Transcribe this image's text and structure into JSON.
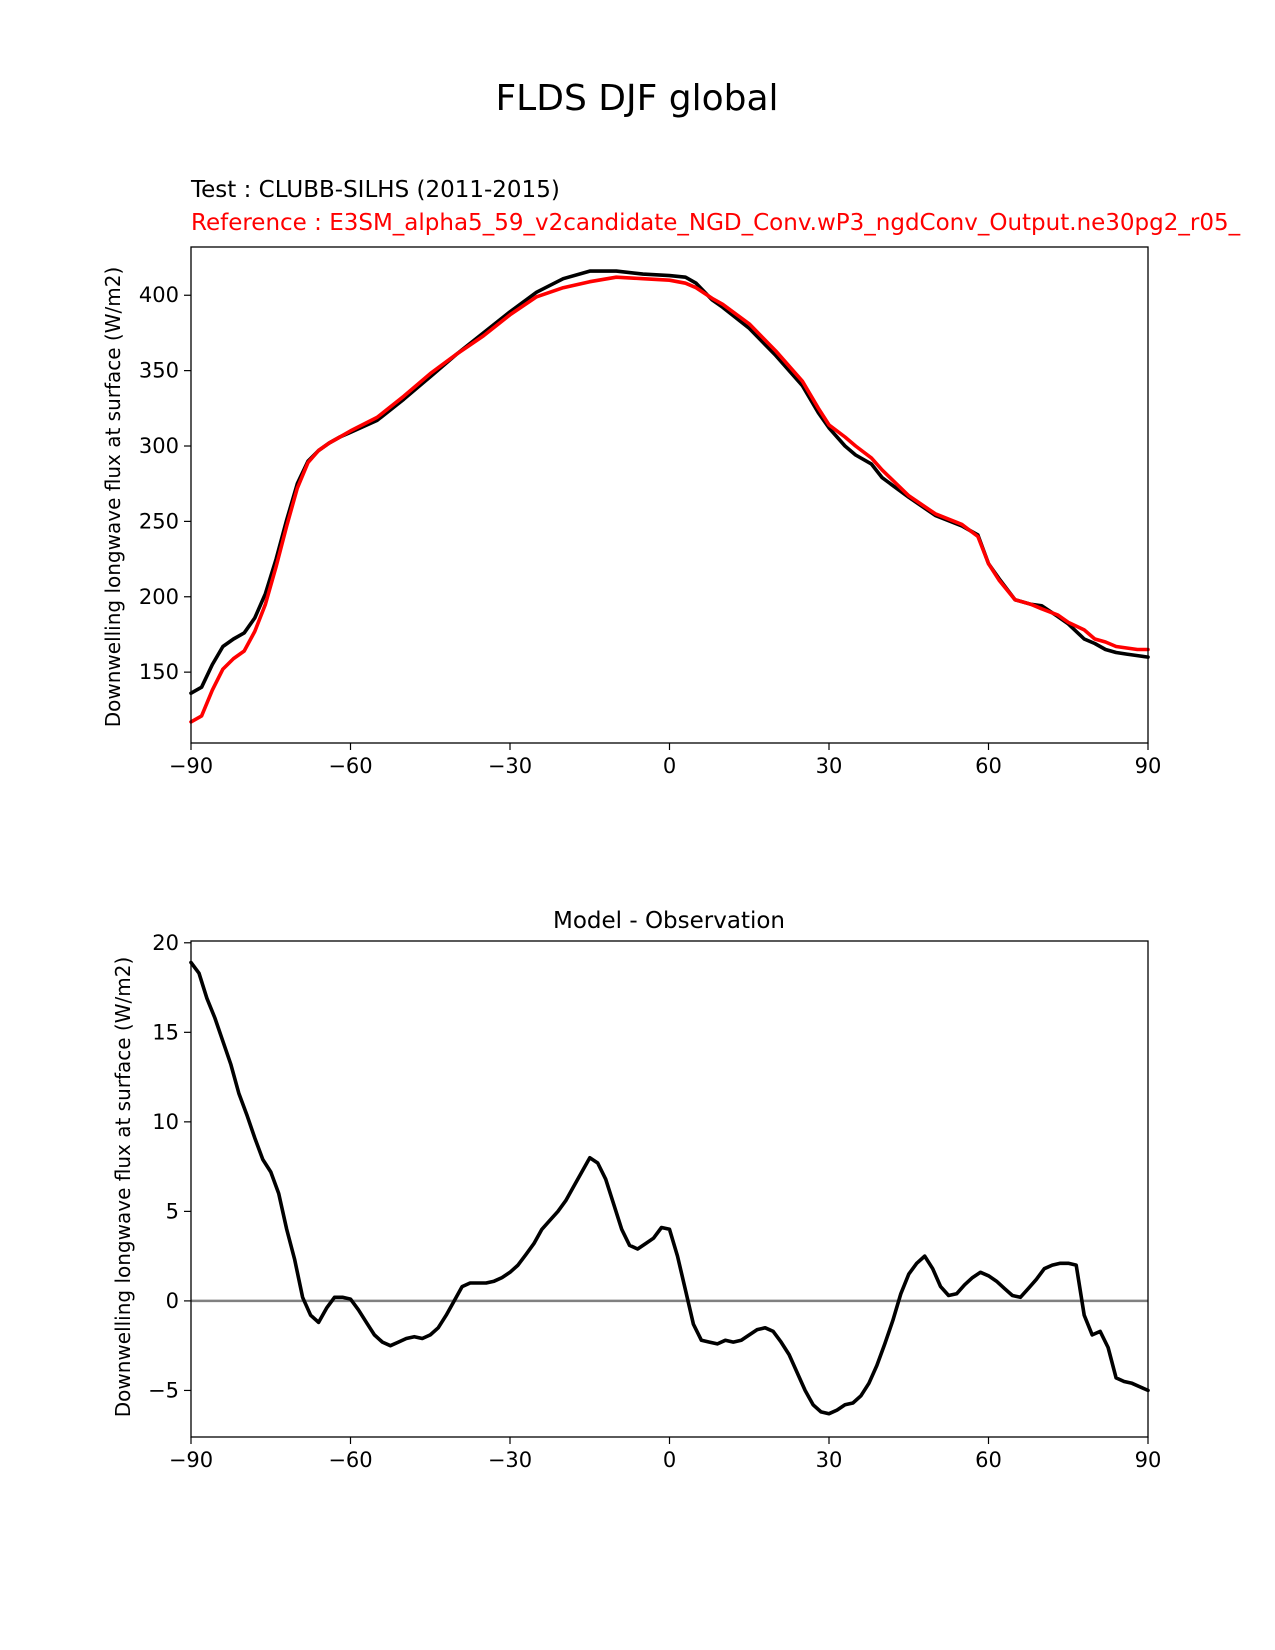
{
  "figure": {
    "suptitle": "FLDS DJF global"
  },
  "chart_data": [
    {
      "type": "line",
      "test_label": "Test : CLUBB-SILHS (2011-2015)",
      "reference_label": "Reference : E3SM_alpha5_59_v2candidate_NGD_Conv.wP3_ngdConv_Output.ne30pg2_r05_",
      "xlabel": "",
      "ylabel": "Downwelling longwave flux at surface (W/m2)",
      "xlim": [
        -90,
        90
      ],
      "ylim": [
        103,
        432
      ],
      "xticks": [
        -90,
        -60,
        -30,
        0,
        30,
        60,
        90
      ],
      "xtick_labels": [
        "−90",
        "−60",
        "−30",
        "0",
        "30",
        "60",
        "90"
      ],
      "yticks": [
        150,
        200,
        250,
        300,
        350,
        400
      ],
      "ytick_labels": [
        "150",
        "200",
        "250",
        "300",
        "350",
        "400"
      ],
      "series": [
        {
          "name": "test",
          "color": "#000000",
          "x": [
            -90,
            -88,
            -86,
            -84,
            -82,
            -80,
            -78,
            -76,
            -74,
            -72,
            -70,
            -68,
            -66,
            -64,
            -62,
            -60,
            -55,
            -50,
            -45,
            -40,
            -35,
            -30,
            -25,
            -20,
            -15,
            -10,
            -5,
            0,
            3,
            5,
            8,
            10,
            15,
            20,
            25,
            28,
            30,
            33,
            35,
            38,
            40,
            45,
            50,
            55,
            58,
            60,
            62,
            65,
            68,
            70,
            73,
            75,
            78,
            80,
            82,
            84,
            86,
            88,
            90
          ],
          "y": [
            136,
            140,
            155,
            167,
            172,
            176,
            186,
            202,
            225,
            251,
            275,
            290,
            297,
            302,
            306,
            309,
            317,
            331,
            346,
            361,
            375,
            389,
            402,
            411,
            416,
            416,
            414,
            413,
            412,
            408,
            397,
            392,
            378,
            360,
            340,
            322,
            312,
            300,
            294,
            288,
            279,
            266,
            254,
            247,
            241,
            222,
            212,
            198,
            195,
            194,
            187,
            182,
            172,
            169,
            165,
            163,
            162,
            161,
            160
          ]
        },
        {
          "name": "reference",
          "color": "#ff0000",
          "x": [
            -90,
            -88,
            -86,
            -84,
            -82,
            -80,
            -78,
            -76,
            -74,
            -72,
            -70,
            -68,
            -66,
            -64,
            -62,
            -60,
            -55,
            -50,
            -45,
            -40,
            -35,
            -30,
            -25,
            -20,
            -15,
            -10,
            -5,
            0,
            3,
            5,
            8,
            10,
            15,
            20,
            25,
            28,
            30,
            33,
            35,
            38,
            40,
            45,
            50,
            55,
            58,
            60,
            62,
            65,
            68,
            70,
            73,
            75,
            78,
            80,
            82,
            84,
            86,
            88,
            90
          ],
          "y": [
            117,
            121,
            138,
            152,
            159,
            164,
            177,
            195,
            220,
            247,
            272,
            289,
            297,
            302,
            306,
            310,
            319,
            333,
            348,
            361,
            373,
            387,
            399,
            405,
            409,
            412,
            411,
            410,
            408,
            405,
            398,
            394,
            381,
            363,
            343,
            325,
            314,
            306,
            300,
            292,
            284,
            267,
            255,
            248,
            240,
            222,
            211,
            198,
            195,
            192,
            188,
            183,
            178,
            172,
            170,
            167,
            166,
            165,
            165
          ]
        }
      ]
    },
    {
      "type": "line",
      "title": "Model - Observation",
      "xlabel": "",
      "ylabel": "Downwelling longwave flux at surface (W/m2)",
      "xlim": [
        -90,
        90
      ],
      "ylim": [
        -7.6,
        20.1
      ],
      "xticks": [
        -90,
        -60,
        -30,
        0,
        30,
        60,
        90
      ],
      "xtick_labels": [
        "−90",
        "−60",
        "−30",
        "0",
        "30",
        "60",
        "90"
      ],
      "yticks": [
        -5,
        0,
        5,
        10,
        15,
        20
      ],
      "ytick_labels": [
        "−5",
        "0",
        "5",
        "10",
        "15",
        "20"
      ],
      "zero_line_color": "#808080",
      "series": [
        {
          "name": "difference",
          "color": "#000000",
          "x": [
            -90,
            -88.5,
            -87,
            -85.5,
            -84,
            -82.5,
            -81,
            -79.5,
            -78,
            -76.5,
            -75,
            -73.5,
            -72,
            -70.5,
            -69,
            -67.5,
            -66,
            -64.5,
            -63,
            -61.5,
            -60,
            -58.5,
            -57,
            -55.5,
            -54,
            -52.5,
            -51,
            -49.5,
            -48,
            -46.5,
            -45,
            -43.5,
            -42,
            -40.5,
            -39,
            -37.5,
            -36,
            -34.5,
            -33,
            -31.5,
            -30,
            -28.5,
            -27,
            -25.5,
            -24,
            -22.5,
            -21,
            -19.5,
            -18,
            -16.5,
            -15,
            -13.5,
            -12,
            -10.5,
            -9,
            -7.5,
            -6,
            -4.5,
            -3,
            -1.5,
            0,
            1.5,
            3,
            4.5,
            6,
            7.5,
            9,
            10.5,
            12,
            13.5,
            15,
            16.5,
            18,
            19.5,
            21,
            22.5,
            24,
            25.5,
            27,
            28.5,
            30,
            31.5,
            33,
            34.5,
            36,
            37.5,
            39,
            40.5,
            42,
            43.5,
            45,
            46.5,
            48,
            49.5,
            51,
            52.5,
            54,
            55.5,
            57,
            58.5,
            60,
            61.5,
            63,
            64.5,
            66,
            67.5,
            69,
            70.5,
            72,
            73.5,
            75,
            76.5,
            78,
            79.5,
            81,
            82.5,
            84,
            85.5,
            87,
            88.5,
            90
          ],
          "y": [
            18.9,
            18.3,
            16.9,
            15.8,
            14.5,
            13.2,
            11.6,
            10.4,
            9.1,
            7.9,
            7.2,
            6.0,
            4.0,
            2.3,
            0.2,
            -0.8,
            -1.2,
            -0.4,
            0.2,
            0.2,
            0.1,
            -0.5,
            -1.2,
            -1.9,
            -2.3,
            -2.5,
            -2.3,
            -2.1,
            -2.0,
            -2.1,
            -1.9,
            -1.5,
            -0.8,
            0.0,
            0.8,
            1.0,
            1.0,
            1.0,
            1.1,
            1.3,
            1.6,
            2.0,
            2.6,
            3.2,
            4.0,
            4.5,
            5.0,
            5.6,
            6.4,
            7.2,
            8.0,
            7.7,
            6.8,
            5.4,
            4.0,
            3.1,
            2.9,
            3.2,
            3.5,
            4.1,
            4.0,
            2.5,
            0.6,
            -1.3,
            -2.2,
            -2.3,
            -2.4,
            -2.2,
            -2.3,
            -2.2,
            -1.9,
            -1.6,
            -1.5,
            -1.7,
            -2.3,
            -3.0,
            -4.0,
            -5.0,
            -5.8,
            -6.2,
            -6.3,
            -6.1,
            -5.8,
            -5.7,
            -5.3,
            -4.6,
            -3.6,
            -2.4,
            -1.1,
            0.4,
            1.5,
            2.1,
            2.5,
            1.8,
            0.8,
            0.3,
            0.4,
            0.9,
            1.3,
            1.6,
            1.4,
            1.1,
            0.7,
            0.3,
            0.2,
            0.7,
            1.2,
            1.8,
            2.0,
            2.1,
            2.1,
            2.0,
            -0.8,
            -1.9,
            -1.7,
            -2.6,
            -4.3,
            -4.5,
            -4.6,
            -4.8,
            -5.0
          ]
        }
      ]
    }
  ]
}
